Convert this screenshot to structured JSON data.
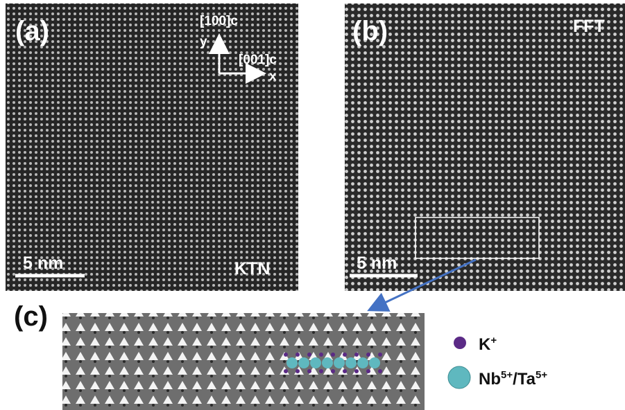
{
  "panel_a": {
    "label": "(a)",
    "axis_y_direction": "[100]c",
    "axis_y": "y",
    "axis_x_direction": "[001]c",
    "axis_x": "x",
    "scale_bar": "5 nm",
    "sample": "KTN"
  },
  "panel_b": {
    "label": "(b)",
    "filter": "FFT",
    "scale_bar": "5 nm"
  },
  "panel_c": {
    "label": "(c)"
  },
  "legend": [
    {
      "symbol": "K",
      "charge": "+"
    },
    {
      "symbol": "Nb",
      "charge": "5+",
      "symbol2": "/Ta",
      "charge2": "5+"
    }
  ]
}
